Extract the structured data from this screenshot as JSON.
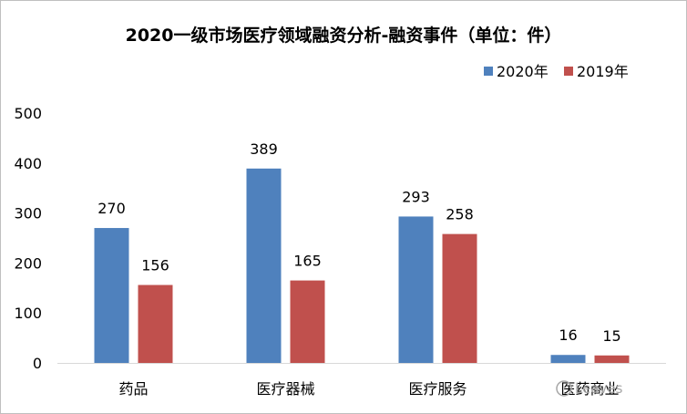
{
  "chart_data": {
    "type": "bar",
    "title": "2020一级市场医疗领域融资分析-融资事件（单位：件）",
    "categories": [
      "药品",
      "医疗器械",
      "医疗服务",
      "医药商业"
    ],
    "series": [
      {
        "name": "2020年",
        "values": [
          270,
          389,
          293,
          16
        ],
        "color": "#4f81bd"
      },
      {
        "name": "2019年",
        "values": [
          156,
          165,
          258,
          15
        ],
        "color": "#c0504d"
      }
    ],
    "ylim": [
      0,
      500
    ],
    "yticks": [
      0,
      100,
      200,
      300,
      400,
      500
    ],
    "grid": false,
    "legend_position": "top-right",
    "xlabel": "",
    "ylabel": ""
  },
  "watermark": {
    "text": "Leaves"
  }
}
